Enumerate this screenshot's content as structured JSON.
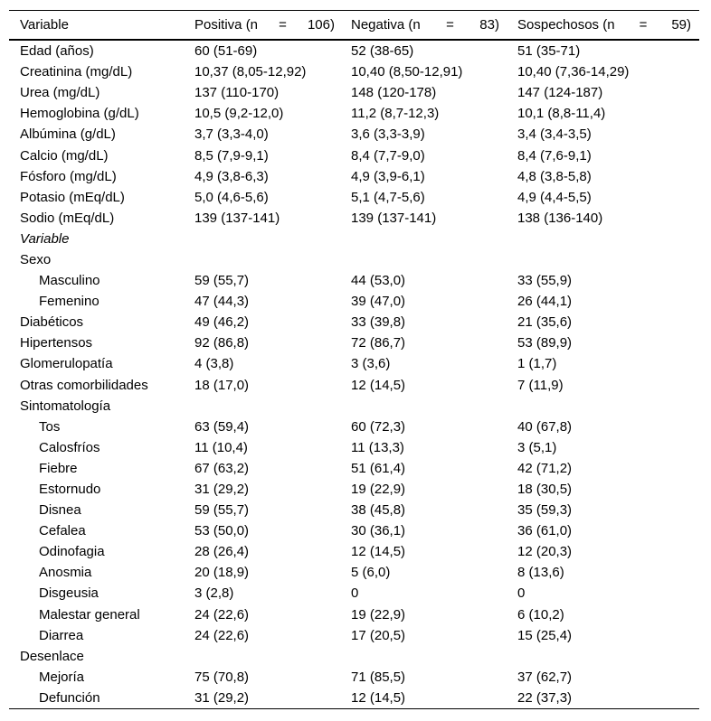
{
  "colors": {
    "text": "#000000",
    "background": "#ffffff",
    "border": "#000000"
  },
  "table": {
    "header": {
      "variable": "Variable",
      "positiva": {
        "label": "Positiva (n",
        "eq": "=",
        "n": "106)"
      },
      "negativa": {
        "label": "Negativa (n",
        "eq": "=",
        "n": "83)"
      },
      "sospechosos": {
        "label": "Sospechosos (n",
        "eq": "=",
        "n": "59)"
      }
    },
    "rows": [
      {
        "label": "Edad (años)",
        "indent": 0,
        "italic": false,
        "values": [
          "60 (51-69)",
          "52 (38-65)",
          "51 (35-71)"
        ]
      },
      {
        "label": "Creatinina (mg/dL)",
        "indent": 0,
        "italic": false,
        "values": [
          "10,37 (8,05-12,92)",
          "10,40 (8,50-12,91)",
          "10,40 (7,36-14,29)"
        ]
      },
      {
        "label": "Urea (mg/dL)",
        "indent": 0,
        "italic": false,
        "values": [
          "137 (110-170)",
          "148 (120-178)",
          "147 (124-187)"
        ]
      },
      {
        "label": "Hemoglobina (g/dL)",
        "indent": 0,
        "italic": false,
        "values": [
          "10,5 (9,2-12,0)",
          "11,2 (8,7-12,3)",
          "10,1 (8,8-11,4)"
        ]
      },
      {
        "label": "Albúmina (g/dL)",
        "indent": 0,
        "italic": false,
        "values": [
          "3,7 (3,3-4,0)",
          "3,6 (3,3-3,9)",
          "3,4 (3,4-3,5)"
        ]
      },
      {
        "label": "Calcio (mg/dL)",
        "indent": 0,
        "italic": false,
        "values": [
          "8,5 (7,9-9,1)",
          "8,4 (7,7-9,0)",
          "8,4 (7,6-9,1)"
        ]
      },
      {
        "label": "Fósforo (mg/dL)",
        "indent": 0,
        "italic": false,
        "values": [
          "4,9 (3,8-6,3)",
          "4,9 (3,9-6,1)",
          "4,8 (3,8-5,8)"
        ]
      },
      {
        "label": "Potasio (mEq/dL)",
        "indent": 0,
        "italic": false,
        "values": [
          "5,0 (4,6-5,6)",
          "5,1 (4,7-5,6)",
          "4,9 (4,4-5,5)"
        ]
      },
      {
        "label": "Sodio (mEq/dL)",
        "indent": 0,
        "italic": false,
        "values": [
          "139 (137-141)",
          "139 (137-141)",
          "138 (136-140)"
        ]
      },
      {
        "label": "Variable",
        "indent": 0,
        "italic": true,
        "values": [
          "",
          "",
          ""
        ]
      },
      {
        "label": "Sexo",
        "indent": 0,
        "italic": false,
        "values": [
          "",
          "",
          ""
        ]
      },
      {
        "label": "Masculino",
        "indent": 1,
        "italic": false,
        "values": [
          "59 (55,7)",
          "44 (53,0)",
          "33 (55,9)"
        ]
      },
      {
        "label": "Femenino",
        "indent": 1,
        "italic": false,
        "values": [
          "47 (44,3)",
          "39 (47,0)",
          "26 (44,1)"
        ]
      },
      {
        "label": "Diabéticos",
        "indent": 0,
        "italic": false,
        "values": [
          "49 (46,2)",
          "33 (39,8)",
          "21 (35,6)"
        ]
      },
      {
        "label": "Hipertensos",
        "indent": 0,
        "italic": false,
        "values": [
          "92 (86,8)",
          "72 (86,7)",
          "53 (89,9)"
        ]
      },
      {
        "label": "Glomerulopatía",
        "indent": 0,
        "italic": false,
        "values": [
          "4 (3,8)",
          "3 (3,6)",
          "1 (1,7)"
        ]
      },
      {
        "label": "Otras comorbilidades",
        "indent": 0,
        "italic": false,
        "values": [
          "18 (17,0)",
          "12 (14,5)",
          "7 (11,9)"
        ]
      },
      {
        "label": "Sintomatología",
        "indent": 0,
        "italic": false,
        "values": [
          "",
          "",
          ""
        ]
      },
      {
        "label": "Tos",
        "indent": 1,
        "italic": false,
        "values": [
          "63 (59,4)",
          "60 (72,3)",
          "40 (67,8)"
        ]
      },
      {
        "label": "Calosfríos",
        "indent": 1,
        "italic": false,
        "values": [
          "11 (10,4)",
          "11 (13,3)",
          "3 (5,1)"
        ]
      },
      {
        "label": "Fiebre",
        "indent": 1,
        "italic": false,
        "values": [
          "67 (63,2)",
          "51 (61,4)",
          "42 (71,2)"
        ]
      },
      {
        "label": "Estornudo",
        "indent": 1,
        "italic": false,
        "values": [
          "31 (29,2)",
          "19 (22,9)",
          "18 (30,5)"
        ]
      },
      {
        "label": "Disnea",
        "indent": 1,
        "italic": false,
        "values": [
          "59 (55,7)",
          "38 (45,8)",
          "35 (59,3)"
        ]
      },
      {
        "label": "Cefalea",
        "indent": 1,
        "italic": false,
        "values": [
          "53 (50,0)",
          "30 (36,1)",
          "36 (61,0)"
        ]
      },
      {
        "label": "Odinofagia",
        "indent": 1,
        "italic": false,
        "values": [
          "28 (26,4)",
          "12 (14,5)",
          "12 (20,3)"
        ]
      },
      {
        "label": "Anosmia",
        "indent": 1,
        "italic": false,
        "values": [
          "20 (18,9)",
          "5 (6,0)",
          "8 (13,6)"
        ]
      },
      {
        "label": "Disgeusia",
        "indent": 1,
        "italic": false,
        "values": [
          "3 (2,8)",
          "0",
          "0"
        ]
      },
      {
        "label": "Malestar general",
        "indent": 1,
        "italic": false,
        "values": [
          "24 (22,6)",
          "19 (22,9)",
          "6 (10,2)"
        ]
      },
      {
        "label": "Diarrea",
        "indent": 1,
        "italic": false,
        "values": [
          "24 (22,6)",
          "17 (20,5)",
          "15 (25,4)"
        ]
      },
      {
        "label": "Desenlace",
        "indent": 0,
        "italic": false,
        "values": [
          "",
          "",
          ""
        ]
      },
      {
        "label": "Mejoría",
        "indent": 1,
        "italic": false,
        "values": [
          "75 (70,8)",
          "71 (85,5)",
          "37 (62,7)"
        ]
      },
      {
        "label": "Defunción",
        "indent": 1,
        "italic": false,
        "values": [
          "31 (29,2)",
          "12 (14,5)",
          "22 (37,3)"
        ]
      }
    ]
  }
}
